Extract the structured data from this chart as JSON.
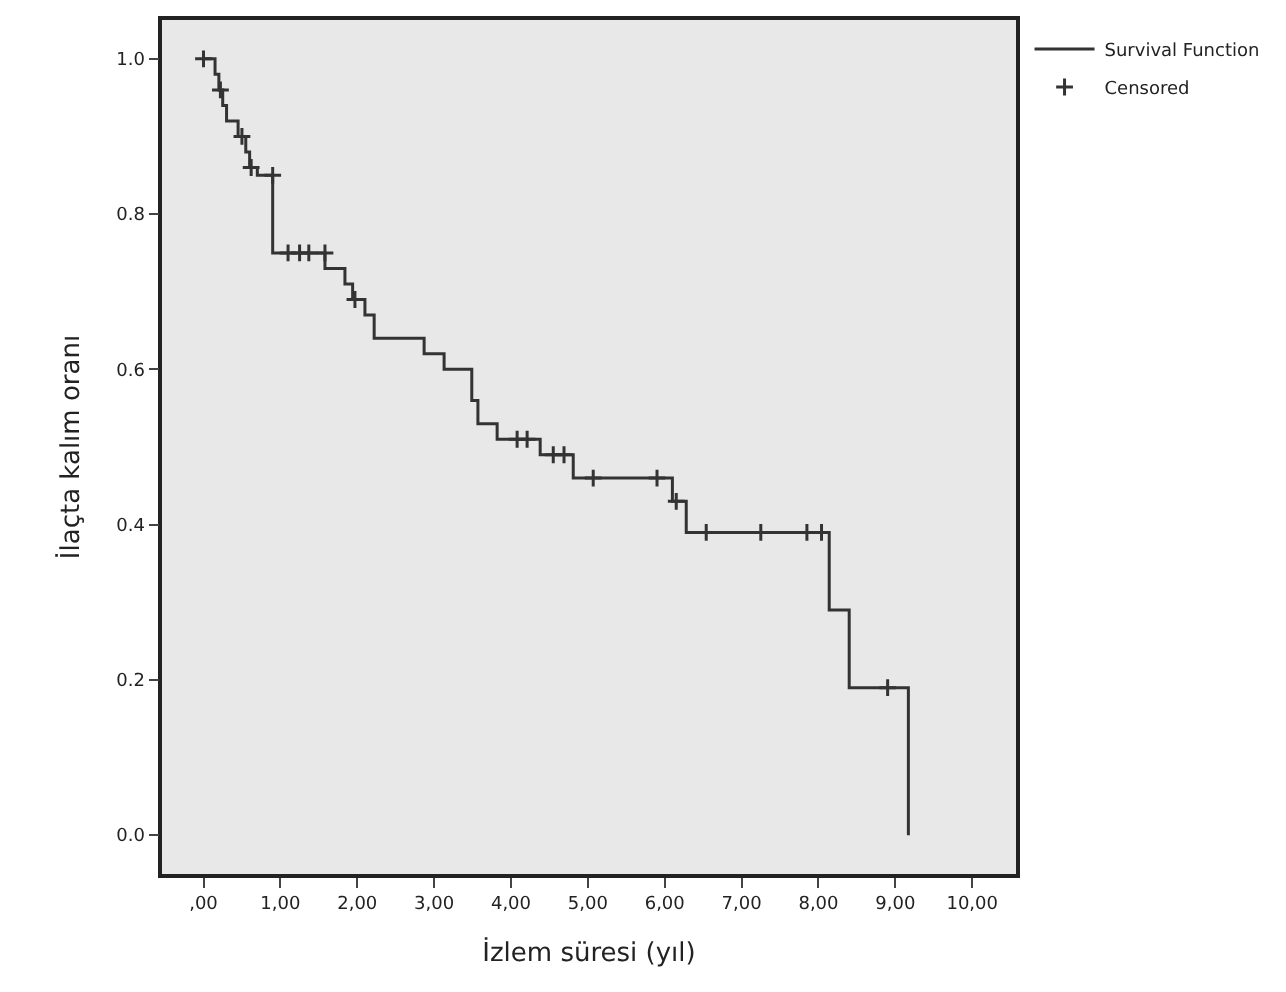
{
  "chart_data": {
    "type": "step",
    "xlabel": "İzlem süresi (yıl)",
    "ylabel": "İlaçta kalım oranı",
    "series": [
      {
        "name": "Survival Function",
        "color": "#333333",
        "marker": "none",
        "line_style": "solid",
        "x": [
          0,
          0.15,
          0.2,
          0.25,
          0.3,
          0.45,
          0.55,
          0.6,
          0.7,
          0.9,
          1.58,
          1.84,
          1.94,
          2.1,
          2.22,
          2.87,
          3.13,
          3.49,
          3.57,
          3.82,
          4.38,
          4.81,
          6.1,
          6.28,
          8.14,
          8.4,
          9.17
        ],
        "values": [
          1,
          0.98,
          0.96,
          0.94,
          0.92,
          0.9,
          0.88,
          0.86,
          0.85,
          0.75,
          0.73,
          0.71,
          0.69,
          0.67,
          0.64,
          0.62,
          0.6,
          0.56,
          0.53,
          0.51,
          0.49,
          0.46,
          0.43,
          0.39,
          0.29,
          0.19,
          0
        ]
      },
      {
        "name": "Censored",
        "type": "scatter",
        "color": "#333333",
        "marker": "cross",
        "x": [
          0,
          0.22,
          0.5,
          0.62,
          0.9,
          1.1,
          1.25,
          1.37,
          1.58,
          1.97,
          4.08,
          4.21,
          4.55,
          4.69,
          5.07,
          5.9,
          6.15,
          6.54,
          7.25,
          7.85,
          8.04,
          8.9
        ],
        "values": [
          1,
          0.96,
          0.9,
          0.86,
          0.85,
          0.75,
          0.75,
          0.75,
          0.75,
          0.69,
          0.51,
          0.51,
          0.49,
          0.49,
          0.46,
          0.46,
          0.43,
          0.39,
          0.39,
          0.39,
          0.39,
          0.19
        ]
      }
    ],
    "xlim": [
      -0.54,
      10.57
    ],
    "ylim": [
      -0.05,
      1.05
    ],
    "xticks": [
      {
        "value": 0,
        "label": ",00"
      },
      {
        "value": 1,
        "label": "1,00"
      },
      {
        "value": 2,
        "label": "2,00"
      },
      {
        "value": 3,
        "label": "3,00"
      },
      {
        "value": 4,
        "label": "4,00"
      },
      {
        "value": 5,
        "label": "5,00"
      },
      {
        "value": 6,
        "label": "6,00"
      },
      {
        "value": 7,
        "label": "7,00"
      },
      {
        "value": 8,
        "label": "8,00"
      },
      {
        "value": 9,
        "label": "9,00"
      },
      {
        "value": 10,
        "label": "10,00"
      }
    ],
    "yticks": [
      {
        "value": 0,
        "label": "0.0"
      },
      0.2,
      0.4,
      0.6,
      0.8,
      {
        "value": 1,
        "label": "1.0"
      }
    ],
    "grid": false,
    "legend": "top right"
  }
}
